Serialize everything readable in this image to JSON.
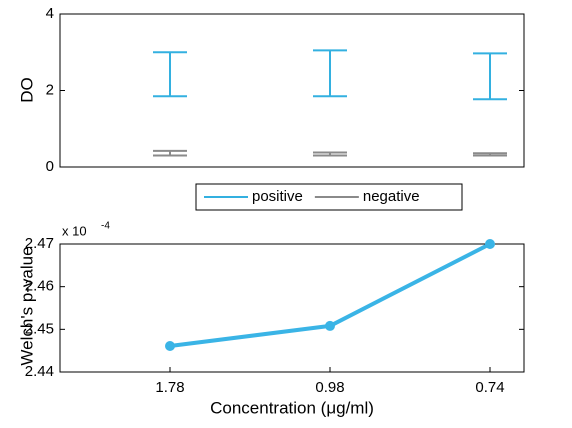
{
  "chart_data": [
    {
      "type": "errorbar",
      "ylabel": "DO",
      "categories": [
        null,
        null,
        null
      ],
      "ylim": [
        0,
        4
      ],
      "yticks": [
        0,
        2,
        4
      ],
      "legend": "bottom",
      "series": [
        {
          "name": "positive",
          "color": "#33b0e0",
          "low": [
            1.85,
            1.85,
            1.77
          ],
          "high": [
            3.0,
            3.05,
            2.97
          ]
        },
        {
          "name": "negative",
          "color": "#8a8a8a",
          "low": [
            0.3,
            0.3,
            0.3
          ],
          "high": [
            0.42,
            0.38,
            0.36
          ]
        }
      ]
    },
    {
      "type": "line",
      "ylabel": "Welch's p-value",
      "xlabel": "Concentration (μg/ml)",
      "multiplier": {
        "base": "x 10",
        "exponent": "-4"
      },
      "categories": [
        "1.78",
        "0.98",
        "0.74"
      ],
      "values": [
        2.4461,
        2.4508,
        2.47
      ],
      "color": "#3ab4e6",
      "ylim": [
        2.44,
        2.47
      ],
      "yticks": [
        2.44,
        2.45,
        2.46,
        2.47
      ]
    }
  ]
}
